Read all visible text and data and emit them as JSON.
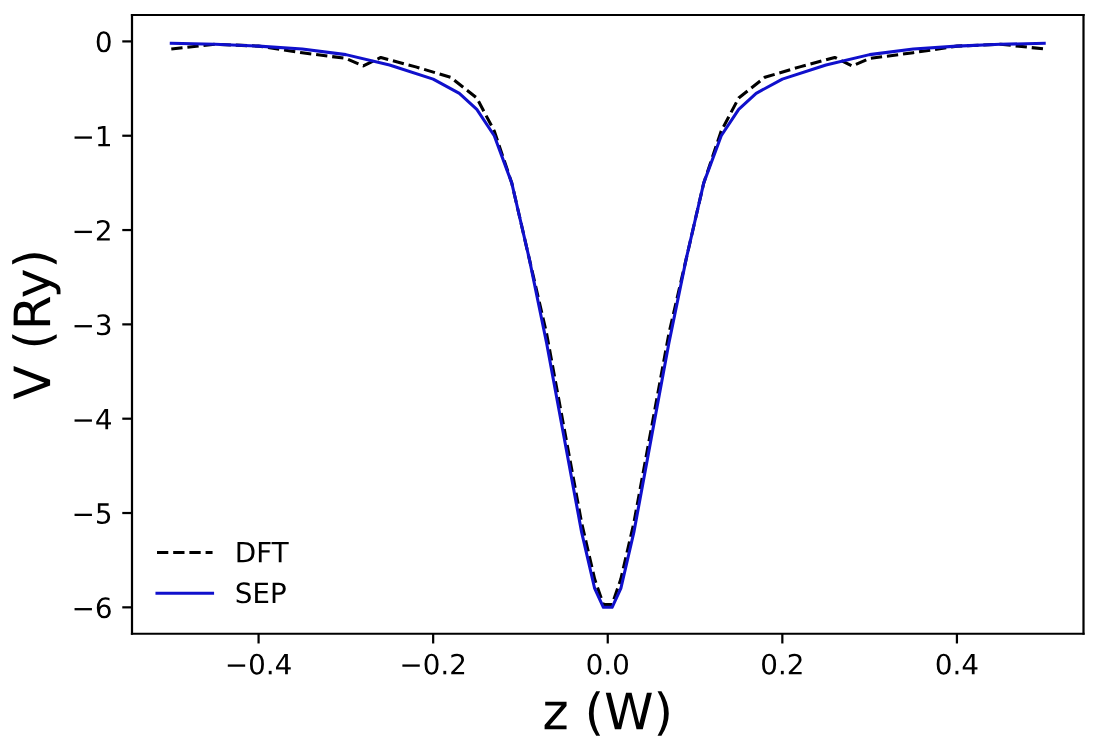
{
  "chart_data": {
    "type": "line",
    "xlabel": "z (W)",
    "ylabel": "V (Ry)",
    "xlim": [
      -0.545,
      0.545
    ],
    "ylim": [
      -6.28,
      0.28
    ],
    "xticks": [
      {
        "value": -0.4,
        "label": "−0.4"
      },
      {
        "value": -0.2,
        "label": "−0.2"
      },
      {
        "value": 0.0,
        "label": "0.0"
      },
      {
        "value": 0.2,
        "label": "0.2"
      },
      {
        "value": 0.4,
        "label": "0.4"
      }
    ],
    "yticks": [
      {
        "value": -6,
        "label": "−6"
      },
      {
        "value": -5,
        "label": "−5"
      },
      {
        "value": -4,
        "label": "−4"
      },
      {
        "value": -3,
        "label": "−3"
      },
      {
        "value": -2,
        "label": "−2"
      },
      {
        "value": -1,
        "label": "−1"
      },
      {
        "value": 0,
        "label": "0"
      }
    ],
    "grid": false,
    "legend": "bottom left",
    "series": [
      {
        "name": "DFT",
        "color": "#000000",
        "line_style": "dashed",
        "x": [
          -0.5,
          -0.45,
          -0.4,
          -0.35,
          -0.3,
          -0.28,
          -0.26,
          -0.22,
          -0.18,
          -0.15,
          -0.13,
          -0.11,
          -0.09,
          -0.07,
          -0.05,
          -0.03,
          -0.015,
          -0.005,
          0.005,
          0.015,
          0.03,
          0.05,
          0.07,
          0.09,
          0.11,
          0.13,
          0.15,
          0.18,
          0.22,
          0.26,
          0.28,
          0.3,
          0.35,
          0.4,
          0.45,
          0.5
        ],
        "values": [
          -0.08,
          -0.03,
          -0.05,
          -0.12,
          -0.18,
          -0.26,
          -0.17,
          -0.27,
          -0.38,
          -0.6,
          -0.95,
          -1.5,
          -2.3,
          -3.1,
          -4.1,
          -5.1,
          -5.7,
          -5.97,
          -5.97,
          -5.7,
          -5.1,
          -4.1,
          -3.1,
          -2.3,
          -1.5,
          -0.95,
          -0.6,
          -0.38,
          -0.27,
          -0.17,
          -0.26,
          -0.18,
          -0.12,
          -0.05,
          -0.03,
          -0.08
        ]
      },
      {
        "name": "SEP",
        "color": "#1010cc",
        "line_style": "solid",
        "x": [
          -0.5,
          -0.45,
          -0.4,
          -0.35,
          -0.3,
          -0.25,
          -0.2,
          -0.17,
          -0.15,
          -0.13,
          -0.11,
          -0.09,
          -0.07,
          -0.05,
          -0.03,
          -0.015,
          -0.005,
          0.005,
          0.015,
          0.03,
          0.05,
          0.07,
          0.09,
          0.11,
          0.13,
          0.15,
          0.17,
          0.2,
          0.25,
          0.3,
          0.35,
          0.4,
          0.45,
          0.5
        ],
        "values": [
          -0.02,
          -0.03,
          -0.05,
          -0.08,
          -0.14,
          -0.25,
          -0.4,
          -0.55,
          -0.72,
          -1.0,
          -1.5,
          -2.3,
          -3.2,
          -4.2,
          -5.2,
          -5.8,
          -6.0,
          -6.0,
          -5.8,
          -5.2,
          -4.2,
          -3.2,
          -2.3,
          -1.5,
          -1.0,
          -0.72,
          -0.55,
          -0.4,
          -0.25,
          -0.14,
          -0.08,
          -0.05,
          -0.03,
          -0.02
        ]
      }
    ]
  }
}
